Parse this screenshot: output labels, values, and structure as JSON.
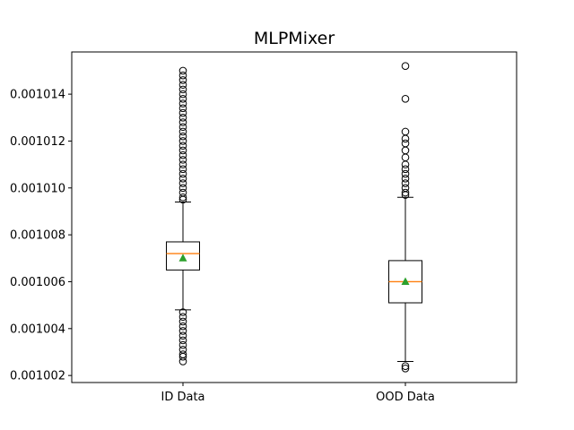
{
  "chart_data": {
    "type": "box",
    "title": "MLPMixer",
    "xlabel": "",
    "ylabel": "",
    "categories": [
      "ID Data",
      "OOD Data"
    ],
    "ylim": [
      0.0010017,
      0.0010158
    ],
    "yticks": [
      0.001002,
      0.001004,
      0.001006,
      0.001008,
      0.00101,
      0.001012,
      0.001014
    ],
    "ytick_labels": [
      "0.001002",
      "0.001004",
      "0.001006",
      "0.001008",
      "0.001010",
      "0.001012",
      "0.001014"
    ],
    "grid": false,
    "boxes": [
      {
        "label": "ID Data",
        "whisker_low": 0.0010048,
        "q1": 0.0010065,
        "median": 0.0010072,
        "mean": 0.001007,
        "q3": 0.0010077,
        "whisker_high": 0.0010094,
        "outliers": [
          0.001015,
          0.0010148,
          0.0010146,
          0.0010144,
          0.0010142,
          0.001014,
          0.0010138,
          0.0010136,
          0.0010134,
          0.0010132,
          0.001013,
          0.0010128,
          0.0010126,
          0.0010124,
          0.0010122,
          0.001012,
          0.0010118,
          0.0010116,
          0.0010114,
          0.0010112,
          0.001011,
          0.0010108,
          0.0010106,
          0.0010104,
          0.0010102,
          0.00101,
          0.0010098,
          0.0010096,
          0.0010095,
          0.0010047,
          0.0010045,
          0.0010043,
          0.0010041,
          0.0010039,
          0.0010037,
          0.0010035,
          0.0010033,
          0.0010031,
          0.0010029,
          0.0010028,
          0.0010026
        ]
      },
      {
        "label": "OOD Data",
        "whisker_low": 0.0010026,
        "q1": 0.0010051,
        "median": 0.001006,
        "mean": 0.001006,
        "q3": 0.0010069,
        "whisker_high": 0.0010096,
        "outliers": [
          0.0010152,
          0.0010138,
          0.0010124,
          0.0010121,
          0.0010119,
          0.0010116,
          0.0010113,
          0.001011,
          0.0010108,
          0.0010106,
          0.0010104,
          0.0010102,
          0.00101,
          0.0010098,
          0.0010097,
          0.0010024,
          0.0010023
        ]
      }
    ],
    "colors": {
      "median": "#ff7f0e",
      "mean_marker": "#2ca02c",
      "box": "#000000"
    }
  }
}
